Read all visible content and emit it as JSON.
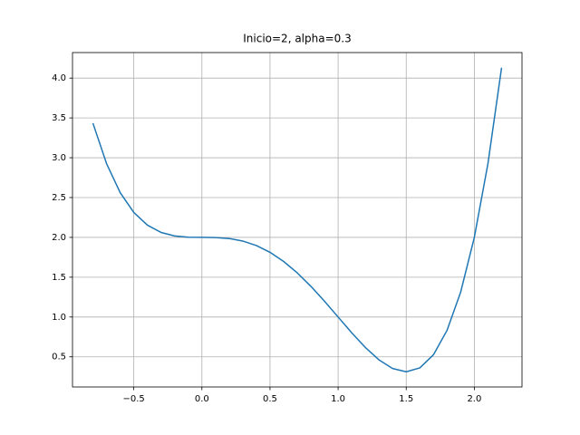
{
  "chart_data": {
    "type": "line",
    "title": "Inicio=2, alpha=0.3",
    "x": [
      -0.8,
      -0.7,
      -0.6,
      -0.5,
      -0.4,
      -0.3,
      -0.2,
      -0.1,
      0,
      0.1,
      0.2,
      0.3,
      0.4,
      0.5,
      0.6,
      0.7,
      0.8,
      0.9,
      1.0,
      1.1,
      1.2,
      1.3,
      1.4,
      1.5,
      1.6,
      1.7,
      1.8,
      1.9,
      2.0,
      2.1,
      2.2
    ],
    "series": [
      {
        "color": "#1f77b4",
        "values": [
          3.4336,
          2.9261,
          2.5616,
          2.3125,
          2.1536,
          2.0621,
          2.0176,
          2.0021,
          2,
          1.9981,
          1.9856,
          1.9541,
          1.8976,
          1.8125,
          1.6976,
          1.5541,
          1.3856,
          1.1981,
          1,
          0.8021,
          0.6176,
          0.4621,
          0.3536,
          0.3125,
          0.3616,
          0.5261,
          0.8336,
          1.3141,
          2,
          2.9261,
          4.1296
        ]
      }
    ],
    "xlim": [
      -0.95,
      2.35
    ],
    "ylim": [
      0.1216,
      4.3205
    ],
    "xticks": [
      {
        "value": -0.5,
        "label": "−0.5"
      },
      {
        "value": 0,
        "label": "0.0"
      },
      0.5,
      {
        "value": 1,
        "label": "1.0"
      },
      1.5,
      {
        "value": 2,
        "label": "2.0"
      }
    ],
    "yticks": [
      0.5,
      {
        "value": 1,
        "label": "1.0"
      },
      1.5,
      {
        "value": 2,
        "label": "2.0"
      },
      2.5,
      {
        "value": 3,
        "label": "3.0"
      },
      3.5,
      {
        "value": 4,
        "label": "4.0"
      }
    ],
    "grid": true
  }
}
